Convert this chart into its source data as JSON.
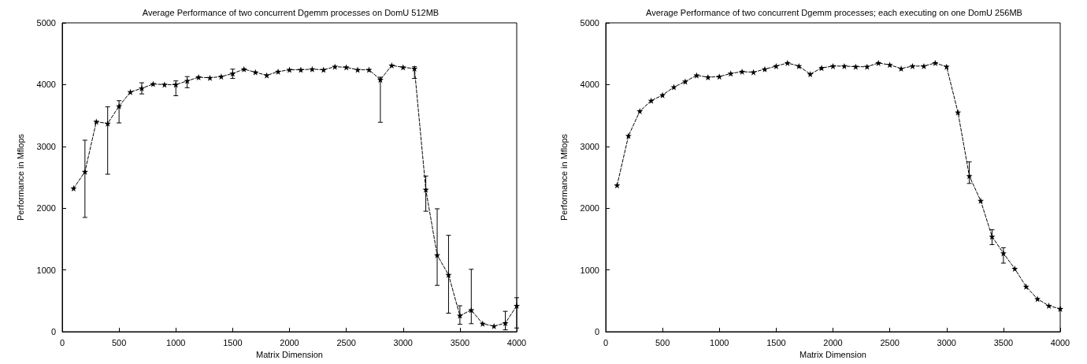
{
  "chart_data": [
    {
      "type": "line",
      "title": "Average Performance of two concurrent Dgemm processes on DomU 512MB",
      "xlabel": "Matrix Dimension",
      "ylabel": "Performance in Mflops",
      "xlim": [
        0,
        4000
      ],
      "ylim": [
        0,
        5000
      ],
      "xticks": [
        0,
        500,
        1000,
        1500,
        2000,
        2500,
        3000,
        3500,
        4000
      ],
      "yticks": [
        0,
        1000,
        2000,
        3000,
        4000,
        5000
      ],
      "marker": "star",
      "line_style": "dashed",
      "x": [
        100,
        200,
        300,
        400,
        500,
        600,
        700,
        800,
        900,
        1000,
        1100,
        1200,
        1300,
        1400,
        1500,
        1600,
        1700,
        1800,
        1900,
        2000,
        2100,
        2200,
        2300,
        2400,
        2500,
        2600,
        2700,
        2800,
        2900,
        3000,
        3100,
        3200,
        3300,
        3400,
        3500,
        3600,
        3700,
        3800,
        3900,
        4000
      ],
      "series": [
        {
          "color": "#000000",
          "values": [
            2320,
            2590,
            3400,
            3370,
            3650,
            3880,
            3940,
            4010,
            4000,
            4000,
            4060,
            4120,
            4110,
            4130,
            4180,
            4250,
            4200,
            4150,
            4210,
            4240,
            4240,
            4250,
            4240,
            4290,
            4280,
            4240,
            4240,
            4080,
            4310,
            4280,
            4260,
            2300,
            1240,
            920,
            260,
            350,
            130,
            90,
            140,
            420
          ],
          "errors": [
            null,
            [
              1850,
              3100
            ],
            null,
            [
              2550,
              3640
            ],
            [
              3380,
              3740
            ],
            null,
            [
              3850,
              4030
            ],
            null,
            null,
            [
              3820,
              4060
            ],
            [
              3950,
              4130
            ],
            null,
            null,
            null,
            [
              4100,
              4250
            ],
            null,
            null,
            null,
            null,
            null,
            null,
            null,
            null,
            null,
            null,
            null,
            null,
            [
              3390,
              4120
            ],
            null,
            null,
            [
              4100,
              4290
            ],
            [
              1950,
              2520
            ],
            [
              750,
              1990
            ],
            [
              300,
              1560
            ],
            [
              120,
              420
            ],
            [
              130,
              1010
            ],
            null,
            null,
            [
              30,
              330
            ],
            [
              60,
              550
            ]
          ]
        }
      ]
    },
    {
      "type": "line",
      "title": "Average Performance of two concurrent Dgemm processes; each executing on one DomU 256MB",
      "xlabel": "Matrix Dimension",
      "ylabel": "Performance in Mflops",
      "xlim": [
        0,
        4000
      ],
      "ylim": [
        0,
        5000
      ],
      "xticks": [
        0,
        500,
        1000,
        1500,
        2000,
        2500,
        3000,
        3500,
        4000
      ],
      "yticks": [
        0,
        1000,
        2000,
        3000,
        4000,
        5000
      ],
      "marker": "star",
      "line_style": "dashed",
      "x": [
        100,
        200,
        300,
        400,
        500,
        600,
        700,
        800,
        900,
        1000,
        1100,
        1200,
        1300,
        1400,
        1500,
        1600,
        1700,
        1800,
        1900,
        2000,
        2100,
        2200,
        2300,
        2400,
        2500,
        2600,
        2700,
        2800,
        2900,
        3000,
        3100,
        3200,
        3300,
        3400,
        3500,
        3600,
        3700,
        3800,
        3900,
        4000
      ],
      "series": [
        {
          "color": "#000000",
          "values": [
            2370,
            3170,
            3570,
            3740,
            3830,
            3960,
            4050,
            4150,
            4120,
            4130,
            4180,
            4210,
            4200,
            4250,
            4300,
            4350,
            4300,
            4170,
            4270,
            4300,
            4300,
            4290,
            4290,
            4350,
            4320,
            4260,
            4300,
            4300,
            4350,
            4290,
            3550,
            2520,
            2120,
            1540,
            1270,
            1020,
            730,
            530,
            420,
            370
          ],
          "errors": [
            null,
            null,
            null,
            null,
            null,
            null,
            null,
            null,
            null,
            null,
            null,
            null,
            null,
            null,
            null,
            null,
            null,
            null,
            null,
            null,
            null,
            null,
            null,
            null,
            null,
            null,
            null,
            null,
            null,
            null,
            null,
            [
              2400,
              2750
            ],
            null,
            [
              1410,
              1650
            ],
            [
              1110,
              1360
            ],
            null,
            null,
            null,
            null,
            null
          ]
        }
      ]
    }
  ]
}
